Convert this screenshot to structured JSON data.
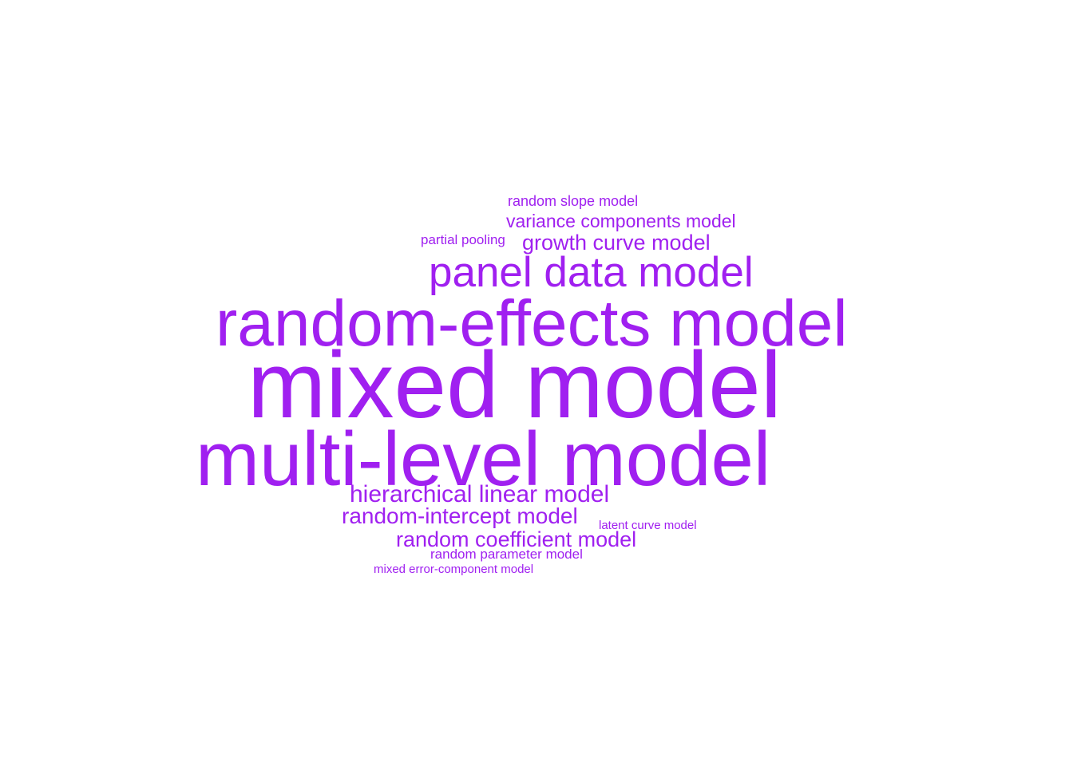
{
  "word_cloud": {
    "color": "#a020f0",
    "background": "#ffffff",
    "words": [
      {
        "text": "mixed model",
        "rank": 1
      },
      {
        "text": "multi-level model",
        "rank": 2
      },
      {
        "text": "random-effects model",
        "rank": 3
      },
      {
        "text": "panel data model",
        "rank": 4
      },
      {
        "text": "hierarchical linear model",
        "rank": 5
      },
      {
        "text": "random-intercept model",
        "rank": 6
      },
      {
        "text": "random coefficient model",
        "rank": 7
      },
      {
        "text": "growth curve model",
        "rank": 8
      },
      {
        "text": "variance components model",
        "rank": 9
      },
      {
        "text": "random slope model",
        "rank": 10
      },
      {
        "text": "partial pooling",
        "rank": 11
      },
      {
        "text": "random parameter model",
        "rank": 12
      },
      {
        "text": "latent curve model",
        "rank": 13
      },
      {
        "text": "mixed error-component model",
        "rank": 14
      }
    ]
  }
}
